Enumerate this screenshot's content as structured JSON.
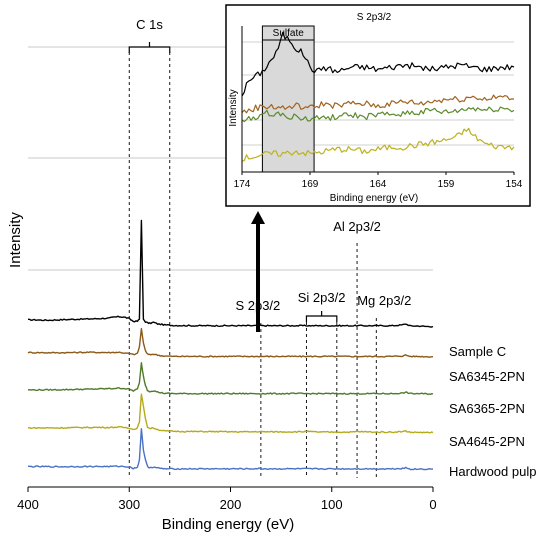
{
  "chart_data": [
    {
      "type": "line",
      "title": "",
      "xlabel": "Binding energy (eV)",
      "ylabel": "Intensity",
      "xlim": [
        400,
        0
      ],
      "x_reversed": true,
      "xticks": [
        "400",
        "300",
        "200",
        "100",
        "0"
      ],
      "grid": "horizontal",
      "series": [
        {
          "name": "Sample C",
          "color": "#000000",
          "x": [
            400,
            380,
            360,
            340,
            320,
            315,
            310,
            305,
            300,
            296,
            292,
            290,
            288,
            286,
            284,
            282,
            280,
            276,
            272,
            265,
            255,
            240,
            220,
            200,
            180,
            172,
            168,
            150,
            130,
            110,
            100,
            80,
            60,
            40,
            30,
            27,
            22,
            15,
            5,
            0
          ],
          "y": [
            0.78,
            0.76,
            0.79,
            0.81,
            0.84,
            0.88,
            0.9,
            0.88,
            0.82,
            0.72,
            0.72,
            0.8,
            4.6,
            0.8,
            0.7,
            0.66,
            0.64,
            0.68,
            0.62,
            0.58,
            0.56,
            0.55,
            0.55,
            0.55,
            0.55,
            0.56,
            0.55,
            0.55,
            0.55,
            0.55,
            0.55,
            0.55,
            0.55,
            0.55,
            0.58,
            0.62,
            0.54,
            0.54,
            0.52,
            0.52
          ]
        },
        {
          "name": "SA6345-2PN",
          "color": "#8B5A1A",
          "x": [
            400,
            370,
            340,
            320,
            310,
            305,
            300,
            296,
            292,
            290,
            288,
            286,
            284,
            282,
            280,
            276,
            272,
            265,
            255,
            240,
            220,
            200,
            180,
            172,
            168,
            150,
            130,
            110,
            100,
            80,
            60,
            40,
            30,
            27,
            22,
            15,
            5,
            0
          ],
          "y": [
            0.48,
            0.47,
            0.49,
            0.48,
            0.49,
            0.46,
            0.44,
            0.4,
            0.44,
            0.7,
            1.4,
            0.85,
            0.55,
            0.42,
            0.39,
            0.42,
            0.38,
            0.34,
            0.33,
            0.33,
            0.33,
            0.33,
            0.33,
            0.33,
            0.33,
            0.33,
            0.33,
            0.33,
            0.33,
            0.33,
            0.33,
            0.33,
            0.35,
            0.38,
            0.33,
            0.33,
            0.32,
            0.32
          ]
        },
        {
          "name": "SA6365-2PN",
          "color": "#4F7A2A",
          "x": [
            400,
            370,
            340,
            320,
            310,
            305,
            300,
            296,
            292,
            290,
            288,
            286,
            284,
            282,
            280,
            276,
            272,
            265,
            255,
            240,
            220,
            200,
            180,
            172,
            168,
            150,
            130,
            110,
            100,
            80,
            60,
            40,
            30,
            27,
            22,
            15,
            5,
            0
          ],
          "y": [
            0.27,
            0.28,
            0.3,
            0.32,
            0.34,
            0.33,
            0.3,
            0.24,
            0.3,
            0.55,
            1.3,
            0.8,
            0.45,
            0.26,
            0.22,
            0.24,
            0.19,
            0.14,
            0.13,
            0.13,
            0.13,
            0.13,
            0.13,
            0.13,
            0.13,
            0.13,
            0.13,
            0.13,
            0.13,
            0.13,
            0.13,
            0.13,
            0.15,
            0.18,
            0.13,
            0.13,
            0.12,
            0.12
          ]
        },
        {
          "name": "SA4645-2PN",
          "color": "#B5AA1C",
          "x": [
            400,
            370,
            340,
            320,
            310,
            305,
            300,
            296,
            292,
            290,
            288,
            286,
            284,
            282,
            280,
            276,
            272,
            265,
            255,
            240,
            220,
            200,
            180,
            172,
            168,
            150,
            130,
            125,
            120,
            110,
            100,
            80,
            75,
            60,
            40,
            30,
            27,
            22,
            15,
            5,
            0
          ],
          "y": [
            0.08,
            0.08,
            0.1,
            0.1,
            0.11,
            0.1,
            0.08,
            0.02,
            0.08,
            0.3,
            1.4,
            0.9,
            0.45,
            0.12,
            0.06,
            0.08,
            0.02,
            -0.04,
            -0.05,
            -0.06,
            -0.06,
            -0.07,
            -0.07,
            -0.06,
            -0.07,
            -0.07,
            -0.07,
            -0.05,
            -0.07,
            -0.08,
            -0.08,
            -0.08,
            -0.06,
            -0.08,
            -0.08,
            -0.06,
            -0.04,
            -0.09,
            -0.09,
            -0.1,
            -0.1
          ]
        },
        {
          "name": "Hardwood pulp",
          "color": "#4A72C4",
          "x": [
            400,
            370,
            340,
            320,
            310,
            305,
            300,
            296,
            292,
            290,
            288,
            286,
            284,
            282,
            280,
            276,
            272,
            265,
            255,
            240,
            220,
            200,
            180,
            172,
            168,
            150,
            130,
            110,
            100,
            80,
            60,
            40,
            30,
            27,
            22,
            15,
            5,
            0
          ],
          "y": [
            -0.25,
            -0.26,
            -0.25,
            -0.25,
            -0.24,
            -0.25,
            -0.27,
            -0.32,
            -0.28,
            0.0,
            1.2,
            0.4,
            0.0,
            -0.25,
            -0.29,
            -0.27,
            -0.31,
            -0.34,
            -0.34,
            -0.34,
            -0.34,
            -0.34,
            -0.34,
            -0.33,
            -0.34,
            -0.34,
            -0.34,
            -0.34,
            -0.34,
            -0.34,
            -0.34,
            -0.34,
            -0.32,
            -0.3,
            -0.35,
            -0.35,
            -0.35,
            -0.35
          ]
        }
      ],
      "annotations": [
        {
          "label": "C 1s",
          "x_range": [
            300,
            260
          ]
        },
        {
          "label": "S 2p3/2",
          "x": 170
        },
        {
          "label": "Si 2p3/2",
          "x_range": [
            125,
            95
          ]
        },
        {
          "label": "Al 2p3/2",
          "x": 75
        },
        {
          "label": "Mg 2p3/2",
          "x": 56
        }
      ]
    },
    {
      "type": "line",
      "title": "S 2p3/2",
      "xlabel": "Binding energy (eV)",
      "ylabel": "Intensity",
      "xlim": [
        174,
        154
      ],
      "x_reversed": true,
      "xticks": [
        "174",
        "169",
        "164",
        "159",
        "154"
      ],
      "grid": "horizontal",
      "shaded_region": {
        "label": "Sulfate",
        "x_range": [
          172.5,
          168.7
        ]
      },
      "series": [
        {
          "name": "Sample C",
          "color": "#000000",
          "x": [
            174,
            173.5,
            173,
            172.5,
            172,
            171.5,
            171,
            170.5,
            170,
            169.5,
            169,
            168.5,
            168,
            167,
            166,
            165,
            164,
            163,
            162,
            161,
            160,
            159,
            158,
            157,
            156,
            155,
            154
          ],
          "y": [
            3.6,
            3.9,
            4.0,
            4.1,
            4.3,
            4.5,
            4.9,
            4.8,
            4.6,
            4.5,
            4.2,
            4.1,
            4.2,
            4.1,
            4.2,
            4.2,
            4.15,
            4.2,
            4.25,
            4.2,
            4.15,
            4.2,
            4.25,
            4.2,
            4.15,
            4.2,
            4.2
          ]
        },
        {
          "name": "SA6345-2PN",
          "color": "#A0621F",
          "x": [
            174,
            173,
            172,
            171,
            170,
            169,
            168,
            167,
            166,
            165,
            164,
            163,
            162,
            161,
            160,
            159,
            158,
            157,
            156,
            155,
            154
          ],
          "y": [
            3.2,
            3.3,
            3.35,
            3.3,
            3.35,
            3.3,
            3.4,
            3.35,
            3.4,
            3.4,
            3.35,
            3.4,
            3.45,
            3.4,
            3.45,
            3.5,
            3.5,
            3.55,
            3.5,
            3.55,
            3.5
          ]
        },
        {
          "name": "SA6365-2PN",
          "color": "#5A8A2A",
          "x": [
            174,
            173,
            172,
            171,
            170,
            169,
            168,
            167,
            166,
            165,
            164,
            163,
            162,
            161,
            160,
            159,
            158,
            157,
            156,
            155,
            154
          ],
          "y": [
            3.0,
            3.1,
            3.2,
            3.15,
            3.1,
            3.05,
            3.1,
            3.1,
            3.15,
            3.1,
            3.15,
            3.15,
            3.2,
            3.2,
            3.25,
            3.2,
            3.25,
            3.3,
            3.25,
            3.3,
            3.25
          ]
        },
        {
          "name": "SA4645-2PN",
          "color": "#BDB21E",
          "x": [
            174,
            173,
            172,
            171,
            170,
            169,
            168,
            167,
            166,
            165,
            164,
            163,
            162,
            161,
            160,
            159,
            158,
            157.5,
            157,
            156.5,
            156,
            155,
            154
          ],
          "y": [
            2.2,
            2.25,
            2.3,
            2.3,
            2.35,
            2.3,
            2.35,
            2.4,
            2.4,
            2.35,
            2.4,
            2.45,
            2.45,
            2.5,
            2.55,
            2.6,
            2.7,
            2.85,
            2.7,
            2.6,
            2.5,
            2.45,
            2.45
          ]
        }
      ]
    }
  ]
}
